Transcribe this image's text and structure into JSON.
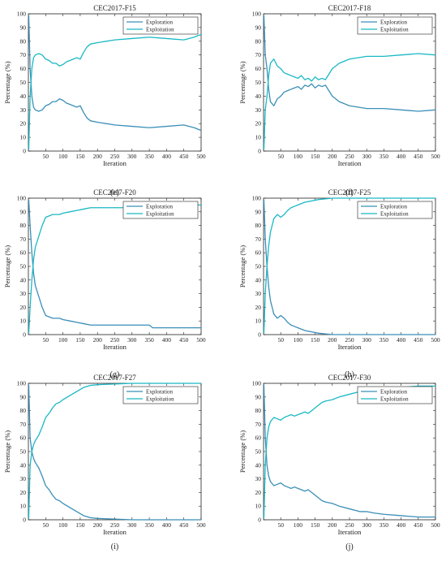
{
  "colors": {
    "exploration": "#3a8fb7",
    "exploitation": "#1ab8c4",
    "axis": "#222222"
  },
  "chart_data": [
    {
      "type": "line",
      "title": "CEC2017-F15",
      "caption": "(e)",
      "xlabel": "Iteration",
      "ylabel": "Percentage (%)",
      "xlim": [
        0,
        500
      ],
      "ylim": [
        0,
        100
      ],
      "xticks": [
        50,
        100,
        150,
        200,
        250,
        300,
        350,
        400,
        450,
        500
      ],
      "yticks": [
        0,
        10,
        20,
        30,
        40,
        50,
        60,
        70,
        80,
        90,
        100
      ],
      "legend": "top-right",
      "x": [
        1,
        5,
        10,
        15,
        20,
        30,
        40,
        50,
        60,
        70,
        80,
        90,
        100,
        110,
        120,
        130,
        140,
        150,
        160,
        170,
        180,
        200,
        250,
        300,
        350,
        400,
        450,
        480,
        500
      ],
      "series": [
        {
          "name": "Exploration",
          "values": [
            99,
            60,
            40,
            32,
            30,
            29,
            30,
            33,
            34,
            36,
            36,
            38,
            37,
            35,
            34,
            33,
            32,
            33,
            28,
            24,
            22,
            21,
            19,
            18,
            17,
            18,
            19,
            17,
            15
          ]
        },
        {
          "name": "Exploitation",
          "values": [
            1,
            40,
            60,
            68,
            70,
            71,
            70,
            67,
            66,
            64,
            64,
            62,
            63,
            65,
            66,
            67,
            68,
            67,
            72,
            76,
            78,
            79,
            81,
            82,
            83,
            82,
            81,
            83,
            85
          ]
        }
      ]
    },
    {
      "type": "line",
      "title": "CEC2017-F18",
      "caption": "(f)",
      "xlabel": "Iteration",
      "ylabel": "Percentage (%)",
      "xlim": [
        0,
        500
      ],
      "ylim": [
        0,
        100
      ],
      "xticks": [
        50,
        100,
        150,
        200,
        250,
        300,
        350,
        400,
        450,
        500
      ],
      "yticks": [
        0,
        10,
        20,
        30,
        40,
        50,
        60,
        70,
        80,
        90,
        100
      ],
      "legend": "top-right",
      "x": [
        1,
        5,
        10,
        15,
        20,
        30,
        40,
        50,
        60,
        70,
        80,
        90,
        100,
        110,
        120,
        130,
        140,
        150,
        160,
        170,
        180,
        190,
        200,
        220,
        250,
        300,
        350,
        400,
        450,
        500
      ],
      "series": [
        {
          "name": "Exploration",
          "values": [
            99,
            70,
            60,
            45,
            36,
            33,
            38,
            40,
            43,
            44,
            45,
            46,
            47,
            45,
            48,
            47,
            49,
            46,
            48,
            47,
            48,
            44,
            40,
            36,
            33,
            31,
            31,
            30,
            29,
            30
          ]
        },
        {
          "name": "Exploitation",
          "values": [
            1,
            30,
            40,
            55,
            64,
            67,
            62,
            60,
            57,
            56,
            55,
            54,
            53,
            55,
            52,
            53,
            51,
            54,
            52,
            53,
            52,
            56,
            60,
            64,
            67,
            69,
            69,
            70,
            71,
            70
          ]
        }
      ]
    },
    {
      "type": "line",
      "title": "CEC2017-F20",
      "caption": "(g)",
      "xlabel": "Iteration",
      "ylabel": "Percentage (%)",
      "xlim": [
        0,
        500
      ],
      "ylim": [
        0,
        100
      ],
      "xticks": [
        50,
        100,
        150,
        200,
        250,
        300,
        350,
        400,
        450,
        500
      ],
      "yticks": [
        0,
        10,
        20,
        30,
        40,
        50,
        60,
        70,
        80,
        90,
        100
      ],
      "legend": "top-right",
      "x": [
        1,
        5,
        10,
        15,
        20,
        30,
        40,
        50,
        60,
        70,
        80,
        90,
        100,
        120,
        140,
        160,
        180,
        200,
        250,
        300,
        350,
        360,
        400,
        450,
        500
      ],
      "series": [
        {
          "name": "Exploration",
          "values": [
            99,
            80,
            60,
            45,
            36,
            28,
            20,
            14,
            13,
            12,
            12,
            12,
            11,
            10,
            9,
            8,
            7,
            7,
            7,
            7,
            7,
            5,
            5,
            5,
            5
          ]
        },
        {
          "name": "Exploitation",
          "values": [
            1,
            20,
            40,
            55,
            64,
            72,
            80,
            86,
            87,
            88,
            88,
            88,
            89,
            90,
            91,
            92,
            93,
            93,
            93,
            93,
            93,
            95,
            95,
            95,
            95
          ]
        }
      ]
    },
    {
      "type": "line",
      "title": "CEC2017-F25",
      "caption": "(h)",
      "xlabel": "Iteration",
      "ylabel": "Percentage (%)",
      "xlim": [
        0,
        500
      ],
      "ylim": [
        0,
        100
      ],
      "xticks": [
        50,
        100,
        150,
        200,
        250,
        300,
        350,
        400,
        450,
        500
      ],
      "yticks": [
        0,
        10,
        20,
        30,
        40,
        50,
        60,
        70,
        80,
        90,
        100
      ],
      "legend": "top-right",
      "x": [
        1,
        5,
        10,
        15,
        20,
        30,
        40,
        50,
        60,
        70,
        80,
        90,
        100,
        120,
        140,
        160,
        180,
        200,
        250,
        300,
        400,
        500
      ],
      "series": [
        {
          "name": "Exploration",
          "values": [
            99,
            70,
            50,
            35,
            25,
            15,
            12,
            14,
            12,
            9,
            7,
            6,
            5,
            3,
            2,
            1,
            0.5,
            0,
            0,
            0,
            0,
            0
          ]
        },
        {
          "name": "Exploitation",
          "values": [
            1,
            30,
            50,
            65,
            75,
            85,
            88,
            86,
            88,
            91,
            93,
            94,
            95,
            97,
            98,
            99,
            99.5,
            100,
            100,
            100,
            100,
            100
          ]
        }
      ]
    },
    {
      "type": "line",
      "title": "CEC2017-F27",
      "caption": "(i)",
      "xlabel": "Iteration",
      "ylabel": "Percentage (%)",
      "xlim": [
        0,
        500
      ],
      "ylim": [
        0,
        100
      ],
      "xticks": [
        50,
        100,
        150,
        200,
        250,
        300,
        350,
        400,
        450,
        500
      ],
      "yticks": [
        0,
        10,
        20,
        30,
        40,
        50,
        60,
        70,
        80,
        90,
        100
      ],
      "legend": "top-right",
      "x": [
        1,
        5,
        10,
        15,
        20,
        30,
        40,
        50,
        60,
        70,
        80,
        90,
        100,
        120,
        140,
        160,
        180,
        200,
        250,
        300,
        400,
        500
      ],
      "series": [
        {
          "name": "Exploration",
          "values": [
            99,
            60,
            50,
            45,
            42,
            38,
            32,
            25,
            22,
            18,
            15,
            14,
            12,
            9,
            6,
            3,
            1.5,
            1,
            0.5,
            0,
            0,
            0
          ]
        },
        {
          "name": "Exploitation",
          "values": [
            1,
            40,
            50,
            55,
            58,
            62,
            68,
            75,
            78,
            82,
            85,
            86,
            88,
            91,
            94,
            97,
            98.5,
            99,
            99.5,
            100,
            100,
            100
          ]
        }
      ]
    },
    {
      "type": "line",
      "title": "CEC2017-F30",
      "caption": "(j)",
      "xlabel": "Iteration",
      "ylabel": "Percentage (%)",
      "xlim": [
        0,
        500
      ],
      "ylim": [
        0,
        100
      ],
      "xticks": [
        50,
        100,
        150,
        200,
        250,
        300,
        350,
        400,
        450,
        500
      ],
      "yticks": [
        0,
        10,
        20,
        30,
        40,
        50,
        60,
        70,
        80,
        90,
        100
      ],
      "legend": "top-right",
      "x": [
        1,
        5,
        10,
        15,
        20,
        30,
        40,
        50,
        60,
        70,
        80,
        90,
        100,
        110,
        120,
        130,
        140,
        150,
        160,
        170,
        180,
        200,
        220,
        250,
        280,
        300,
        320,
        350,
        400,
        450,
        500
      ],
      "series": [
        {
          "name": "Exploration",
          "values": [
            99,
            60,
            40,
            32,
            28,
            25,
            26,
            27,
            25,
            24,
            23,
            24,
            23,
            22,
            21,
            22,
            20,
            18,
            16,
            14,
            13,
            12,
            10,
            8,
            6,
            6,
            5,
            4,
            3,
            2,
            2
          ]
        },
        {
          "name": "Exploitation",
          "values": [
            1,
            40,
            60,
            68,
            72,
            75,
            74,
            73,
            75,
            76,
            77,
            76,
            77,
            78,
            79,
            78,
            80,
            82,
            84,
            86,
            87,
            88,
            90,
            92,
            94,
            94,
            95,
            96,
            97,
            98,
            98
          ]
        }
      ]
    }
  ]
}
